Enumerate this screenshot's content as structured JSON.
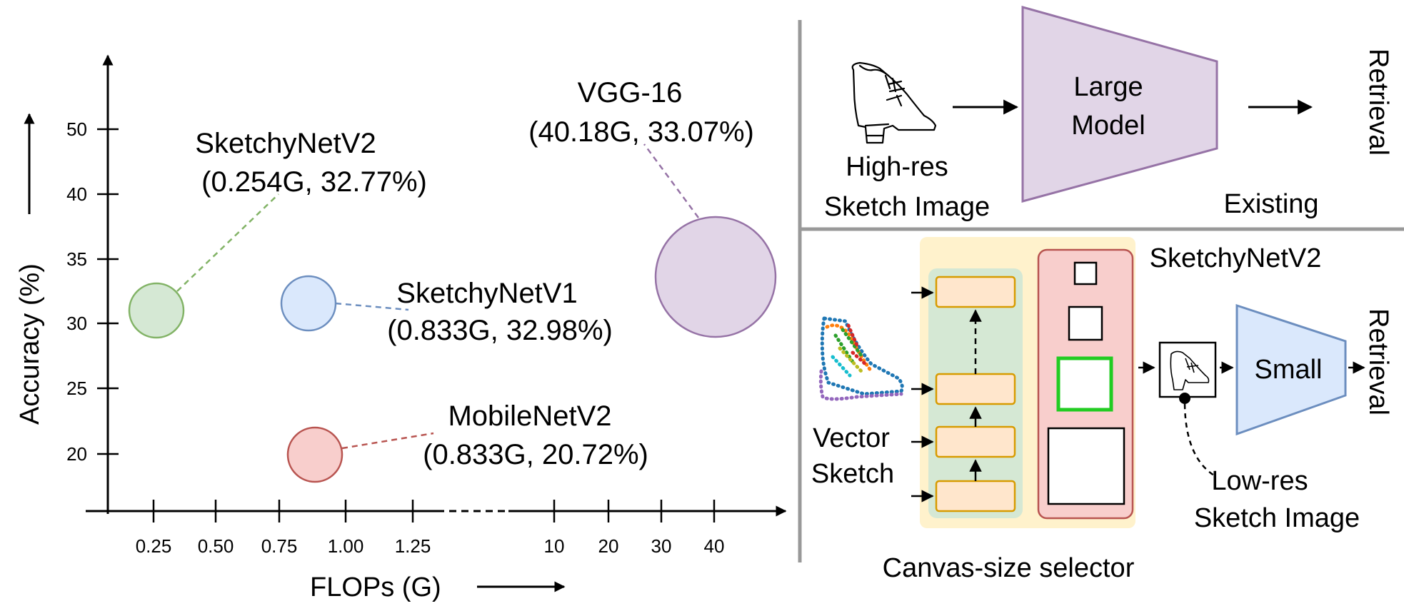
{
  "chart_data": {
    "type": "scatter",
    "title": "",
    "xlabel": "FLOPs (G)",
    "ylabel": "Accuracy (%)",
    "x_ticks_left": [
      "0.25",
      "0.50",
      "0.75",
      "1.00",
      "1.25"
    ],
    "x_ticks_right": [
      "10",
      "20",
      "30",
      "40"
    ],
    "y_ticks": [
      "20",
      "25",
      "30",
      "35",
      "40",
      "50"
    ],
    "points": [
      {
        "name": "SketchyNetV2",
        "label_line1": "SketchyNetV2",
        "label_line2": "(0.254G, 32.77%)",
        "flops": 0.254,
        "accuracy": 32.77,
        "color": "#d5e8d4",
        "stroke": "#82b366"
      },
      {
        "name": "SketchyNetV1",
        "label_line1": "SketchyNetV1",
        "label_line2": "(0.833G, 32.98%)",
        "flops": 0.833,
        "accuracy": 32.98,
        "color": "#dae8fc",
        "stroke": "#6c8ebf"
      },
      {
        "name": "MobileNetV2",
        "label_line1": "MobileNetV2",
        "label_line2": "(0.833G, 20.72%)",
        "flops": 0.833,
        "accuracy": 20.72,
        "color": "#f8cecc",
        "stroke": "#b85450"
      },
      {
        "name": "VGG-16",
        "label_line1": "VGG-16",
        "label_line2": "(40.18G, 33.07%)",
        "flops": 40.18,
        "accuracy": 33.07,
        "color": "#e1d5e7",
        "stroke": "#9673a6"
      }
    ]
  },
  "diagram": {
    "existing": {
      "input_line1": "High-res",
      "input_line2": "Sketch Image",
      "model_line1": "Large",
      "model_line2": "Model",
      "output": "Retrieval",
      "caption": "Existing"
    },
    "proposed": {
      "title": "SketchyNetV2",
      "input_line1": "Vector",
      "input_line2": "Sketch",
      "selector_caption": "Canvas-size selector",
      "lowres_line1": "Low-res",
      "lowres_line2": "Sketch Image",
      "model": "Small",
      "output": "Retrieval"
    },
    "colors": {
      "model_purple": "#e1d5e7",
      "model_blue": "#dae8fc",
      "selector_yellow": "#fff2cc",
      "selector_green": "#d5e8d4",
      "selector_red": "#f8cecc",
      "block_orange": "#ffe6cc",
      "highlight_green": "#22cc22",
      "divider_gray": "#999999"
    },
    "icons": [
      "shoe-sketch-icon",
      "vector-sketch-icon",
      "small-shoe-icon"
    ]
  }
}
